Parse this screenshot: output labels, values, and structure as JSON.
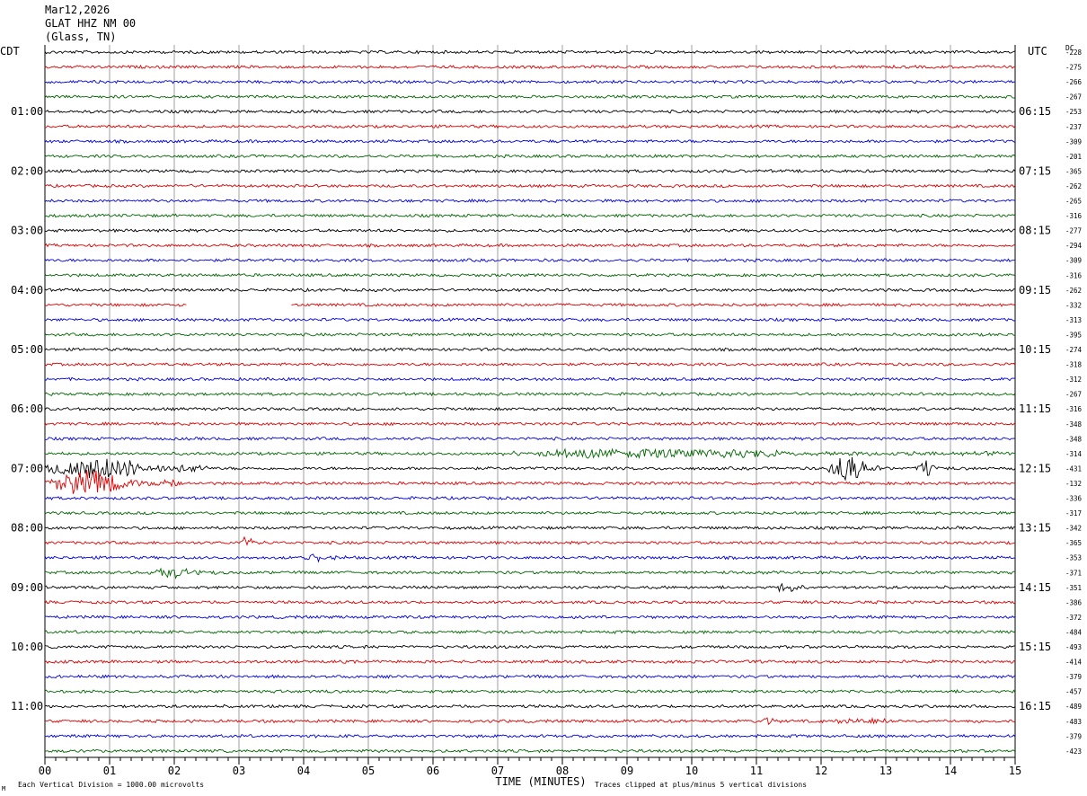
{
  "header": {
    "date": "Mar12,2026",
    "station": "GLAT HHZ NM 00",
    "location": "(Glass, TN)"
  },
  "labels": {
    "left_zone": "CDT",
    "right_zone": "UTC",
    "dc_label": "DC",
    "x_axis_title": "TIME (MINUTES)",
    "scale_note": "Each Vertical Division = 1000.00 microvolts",
    "clip_note": "Traces clipped at plus/minus 5 vertical divisions"
  },
  "chart_data": {
    "type": "line",
    "title": "",
    "xlabel": "TIME (MINUTES)",
    "x_ticks": [
      "00",
      "01",
      "02",
      "03",
      "04",
      "05",
      "06",
      "07",
      "08",
      "09",
      "10",
      "11",
      "12",
      "13",
      "14",
      "15"
    ],
    "xlim": [
      0,
      15
    ],
    "rows": 48,
    "minutes_per_row": 15,
    "trace_colors": [
      "#000000",
      "#dd0000",
      "#0000dd",
      "#006600"
    ],
    "left_hour_labels": [
      "01:00",
      "02:00",
      "03:00",
      "04:00",
      "05:00",
      "06:00",
      "07:00",
      "08:00",
      "09:00",
      "10:00",
      "11:00"
    ],
    "right_hour_labels": [
      "06:15",
      "07:15",
      "08:15",
      "09:15",
      "10:15",
      "11:15",
      "12:15",
      "13:15",
      "14:15",
      "15:15",
      "16:15"
    ],
    "hour_label_rows": [
      4,
      8,
      12,
      16,
      20,
      24,
      28,
      32,
      36,
      40,
      44
    ],
    "dc_offsets": [
      "-228",
      "-275",
      "-266",
      "-267",
      "-253",
      "-237",
      "-309",
      "-201",
      "-365",
      "-262",
      "-265",
      "-316",
      "-277",
      "-294",
      "-309",
      "-316",
      "-262",
      "-332",
      "-313",
      "-395",
      "-274",
      "-318",
      "-312",
      "-267",
      "-316",
      "-348",
      "-348",
      "-314",
      "-431",
      "-132",
      "-336",
      "-317",
      "-342",
      "-365",
      "-353",
      "-371",
      "-351",
      "-386",
      "-372",
      "-484",
      "-493",
      "-414",
      "-379",
      "-457",
      "-489",
      "-483",
      "-379",
      "-423"
    ],
    "events": [
      {
        "row": 28,
        "start_min": 0.0,
        "end_min": 2.5,
        "amplitude": 0.9
      },
      {
        "row": 28,
        "start_min": 12.1,
        "end_min": 13.1,
        "amplitude": 1.0
      },
      {
        "row": 28,
        "start_min": 13.5,
        "end_min": 14.0,
        "amplitude": 0.7
      },
      {
        "row": 29,
        "start_min": 0.0,
        "end_min": 2.1,
        "amplitude": 1.0
      },
      {
        "row": 27,
        "start_min": 6.9,
        "end_min": 15.0,
        "amplitude": 0.35
      },
      {
        "row": 33,
        "start_min": 3.0,
        "end_min": 3.4,
        "amplitude": 0.45
      },
      {
        "row": 34,
        "start_min": 4.0,
        "end_min": 4.7,
        "amplitude": 0.3
      },
      {
        "row": 35,
        "start_min": 1.6,
        "end_min": 2.7,
        "amplitude": 0.4
      },
      {
        "row": 36,
        "start_min": 11.3,
        "end_min": 11.8,
        "amplitude": 0.35
      },
      {
        "row": 45,
        "start_min": 11.1,
        "end_min": 11.4,
        "amplitude": 0.35
      },
      {
        "row": 45,
        "start_min": 12.0,
        "end_min": 14.0,
        "amplitude": 0.2
      }
    ],
    "gaps": [
      {
        "row": 17,
        "start_min": 2.2,
        "end_min": 3.8
      }
    ]
  }
}
